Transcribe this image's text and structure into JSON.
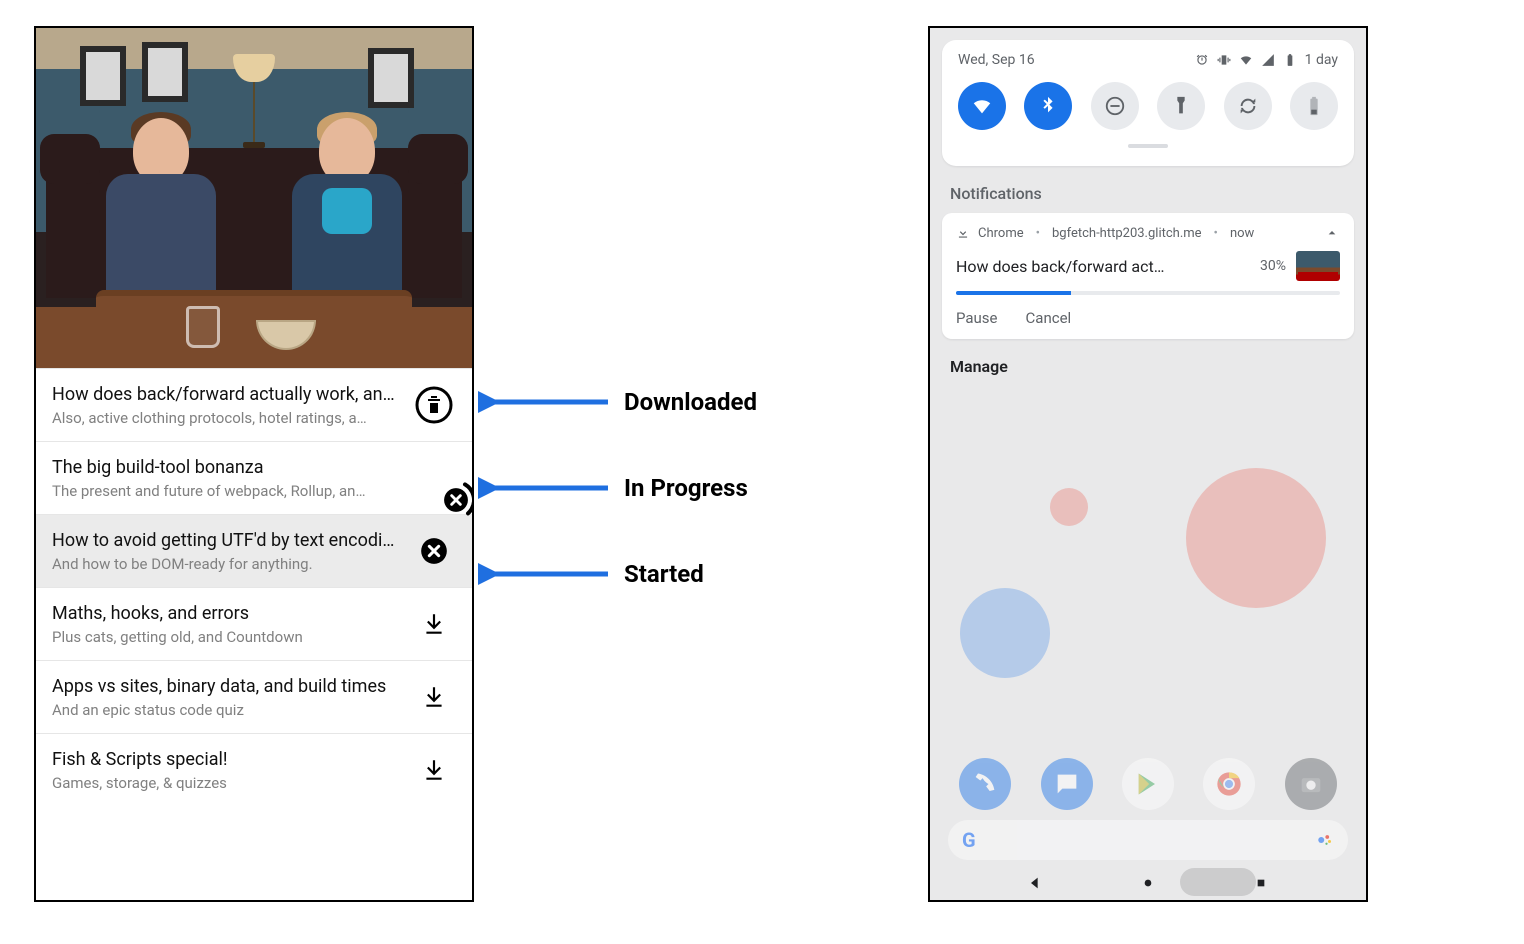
{
  "colors": {
    "accent_blue": "#1a73e8",
    "grey_icon": "#5f6368",
    "grey_text": "#808080",
    "row_selected_bg": "#ebebeb",
    "divider": "#e6e6e6",
    "arrow": "#1f6fe0"
  },
  "left_app": {
    "hero_alt": "Two people sitting at a table",
    "items": [
      {
        "title": "How does back/forward actually work, an…",
        "subtitle": "Also, active clothing protocols, hotel ratings, a…",
        "state": "downloaded",
        "selected": false
      },
      {
        "title": "The big build-tool bonanza",
        "subtitle": "The present and future of webpack, Rollup, an…",
        "state": "in_progress",
        "progress_pct": 30,
        "selected": false
      },
      {
        "title": "How to avoid getting UTF'd by text encodi…",
        "subtitle": "And how to be DOM-ready for anything.",
        "state": "started",
        "selected": true
      },
      {
        "title": "Maths, hooks, and errors",
        "subtitle": "Plus cats, getting old, and Countdown",
        "state": "idle",
        "selected": false
      },
      {
        "title": "Apps vs sites, binary data, and build times",
        "subtitle": "And an epic status code quiz",
        "state": "idle",
        "selected": false
      },
      {
        "title": "Fish & Scripts special!",
        "subtitle": "Games, storage, & quizzes",
        "state": "idle",
        "selected": false
      }
    ]
  },
  "annotations": [
    {
      "label": "Downloaded",
      "points_to_item": 0
    },
    {
      "label": "In Progress",
      "points_to_item": 1
    },
    {
      "label": "Started",
      "points_to_item": 2
    }
  ],
  "right_phone": {
    "status_bar": {
      "date": "Wed, Sep 16",
      "battery_text": "1 day"
    },
    "quick_settings": [
      {
        "name": "wifi",
        "on": true
      },
      {
        "name": "bluetooth",
        "on": true
      },
      {
        "name": "dnd",
        "on": false
      },
      {
        "name": "flashlight",
        "on": false
      },
      {
        "name": "autorotate",
        "on": false
      },
      {
        "name": "battery",
        "on": false
      }
    ],
    "section_label": "Notifications",
    "notification": {
      "app": "Chrome",
      "source": "bgfetch-http203.glitch.me",
      "when": "now",
      "title": "How does back/forward act…",
      "progress_pct": 30,
      "progress_text": "30%",
      "actions": [
        "Pause",
        "Cancel"
      ]
    },
    "manage_label": "Manage",
    "dock_apps": [
      "phone",
      "messages",
      "play",
      "chrome",
      "camera"
    ]
  }
}
